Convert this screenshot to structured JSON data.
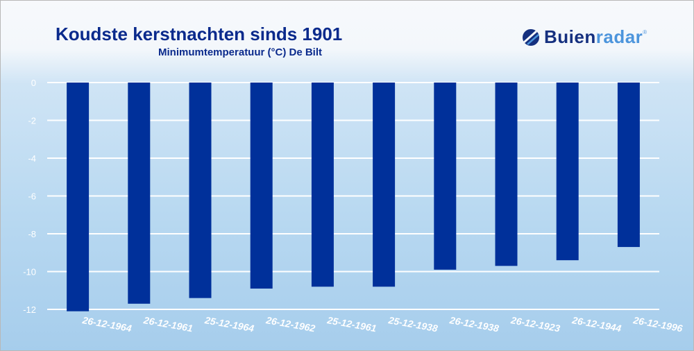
{
  "chart_data": {
    "type": "bar",
    "title": "Koudste kerstnachten sinds 1901",
    "subtitle": "Minimumtemperatuur (°C) De Bilt",
    "xlabel": "",
    "ylabel": "",
    "categories": [
      "26-12-1964",
      "26-12-1961",
      "25-12-1964",
      "26-12-1962",
      "25-12-1961",
      "25-12-1938",
      "26-12-1938",
      "26-12-1923",
      "26-12-1944",
      "26-12-1996"
    ],
    "values": [
      -12.1,
      -11.7,
      -11.4,
      -10.9,
      -10.8,
      -10.8,
      -9.9,
      -9.7,
      -9.4,
      -8.7
    ],
    "ylim": [
      -12,
      0
    ],
    "yticks": [
      "0",
      "-2",
      "-4",
      "-6",
      "-8",
      "-10",
      "-12"
    ],
    "grid": true,
    "bar_color": "#00309a"
  },
  "logo": {
    "dark": "Buien",
    "light": "radar",
    "reg": "®"
  }
}
